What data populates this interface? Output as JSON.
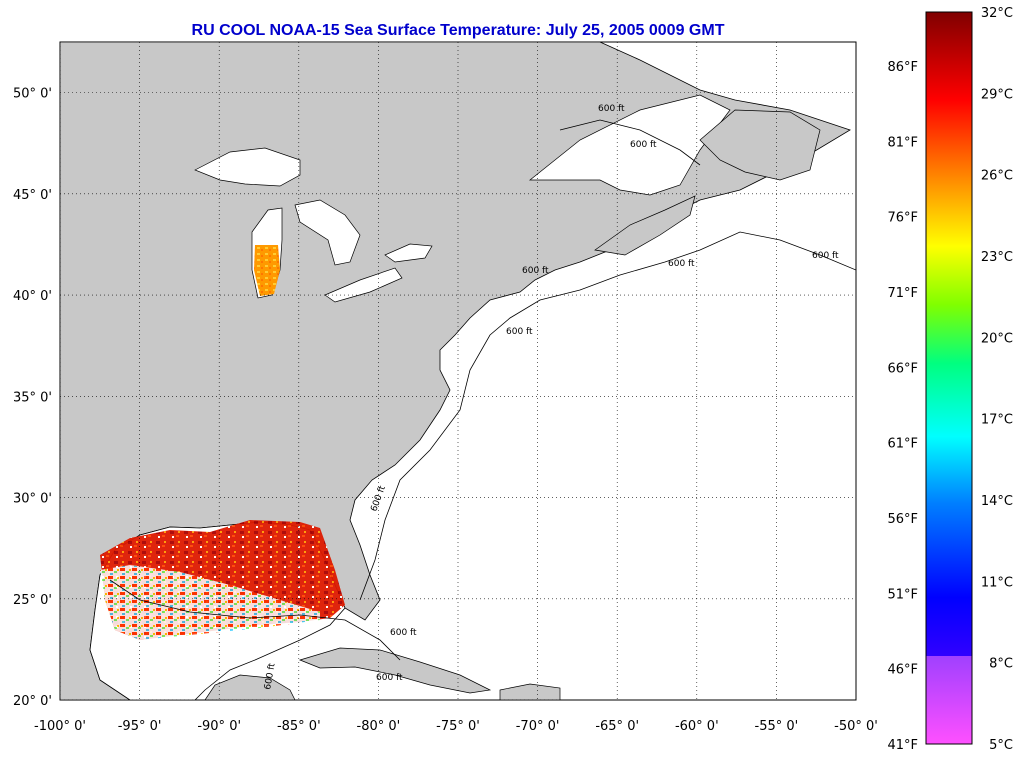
{
  "title": "RU COOL  NOAA-15  Sea Surface Temperature:  July 25, 2005 0009 GMT",
  "map": {
    "lon_range": [
      -100,
      -50
    ],
    "lat_range": [
      20,
      52.5
    ],
    "lon_ticks": [
      "-100° 0'",
      "-95° 0'",
      "-90° 0'",
      "-85° 0'",
      "-80° 0'",
      "-75° 0'",
      "-70° 0'",
      "-65° 0'",
      "-60° 0'",
      "-55° 0'",
      "-50° 0'"
    ],
    "lat_ticks": [
      "20° 0'",
      "25° 0'",
      "30° 0'",
      "35° 0'",
      "40° 0'",
      "45° 0'",
      "50° 0'"
    ],
    "land_color": "#c8c8c8",
    "ocean_color": "#ffffff",
    "grid": "dotted",
    "contour_label": "600 ft"
  },
  "colorbar": {
    "celsius_labels": [
      "32°C",
      "29°C",
      "26°C",
      "23°C",
      "20°C",
      "17°C",
      "14°C",
      "11°C",
      "8°C",
      "5°C"
    ],
    "fahrenheit_labels": [
      "86°F",
      "81°F",
      "76°F",
      "71°F",
      "66°F",
      "61°F",
      "56°F",
      "51°F",
      "46°F",
      "41°F"
    ],
    "colors": [
      "#ff50ff",
      "#8000ff",
      "#0000ff",
      "#0080ff",
      "#00ffff",
      "#00ff80",
      "#80ff00",
      "#ffff00",
      "#ff8000",
      "#ff0000",
      "#800000"
    ]
  }
}
